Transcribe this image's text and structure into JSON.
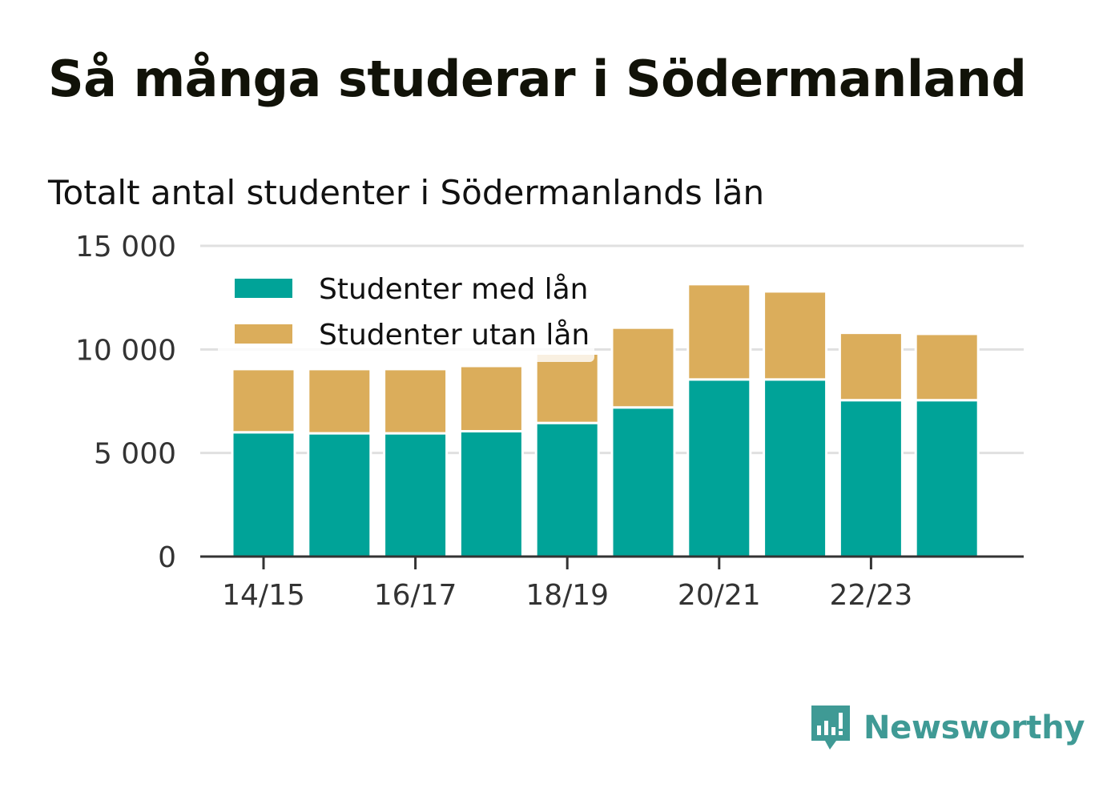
{
  "title": "Så många studerar i Södermanland",
  "subtitle": "Totalt antal studenter i Södermanlands län",
  "brand": {
    "name": "Newsworthy",
    "color": "#3f9a95",
    "icon": "newsworthy-logo-icon"
  },
  "colors": {
    "med_lan": "#00a398",
    "utan_lan": "#dbad5b",
    "grid": "#e0e0e0",
    "axis": "#333333"
  },
  "chart_data": {
    "type": "bar",
    "stacked": true,
    "categories": [
      "14/15",
      "15/16",
      "16/17",
      "17/18",
      "18/19",
      "19/20",
      "20/21",
      "21/22",
      "22/23",
      "23/24"
    ],
    "x_tick_labels": [
      "14/15",
      "16/17",
      "18/19",
      "20/21",
      "22/23"
    ],
    "series": [
      {
        "name": "Studenter med lån",
        "values": [
          6000,
          5950,
          5950,
          6050,
          6450,
          7200,
          8550,
          8550,
          7550,
          7550
        ]
      },
      {
        "name": "Studenter utan lån",
        "values": [
          3050,
          3100,
          3100,
          3150,
          3350,
          3850,
          4600,
          4250,
          3250,
          3200
        ]
      }
    ],
    "ylim": [
      0,
      15000
    ],
    "y_ticks": [
      0,
      5000,
      10000,
      15000
    ],
    "y_tick_labels": [
      "0",
      "5 000",
      "10 000",
      "15 000"
    ],
    "grid": true,
    "legend_position": "top-left"
  }
}
